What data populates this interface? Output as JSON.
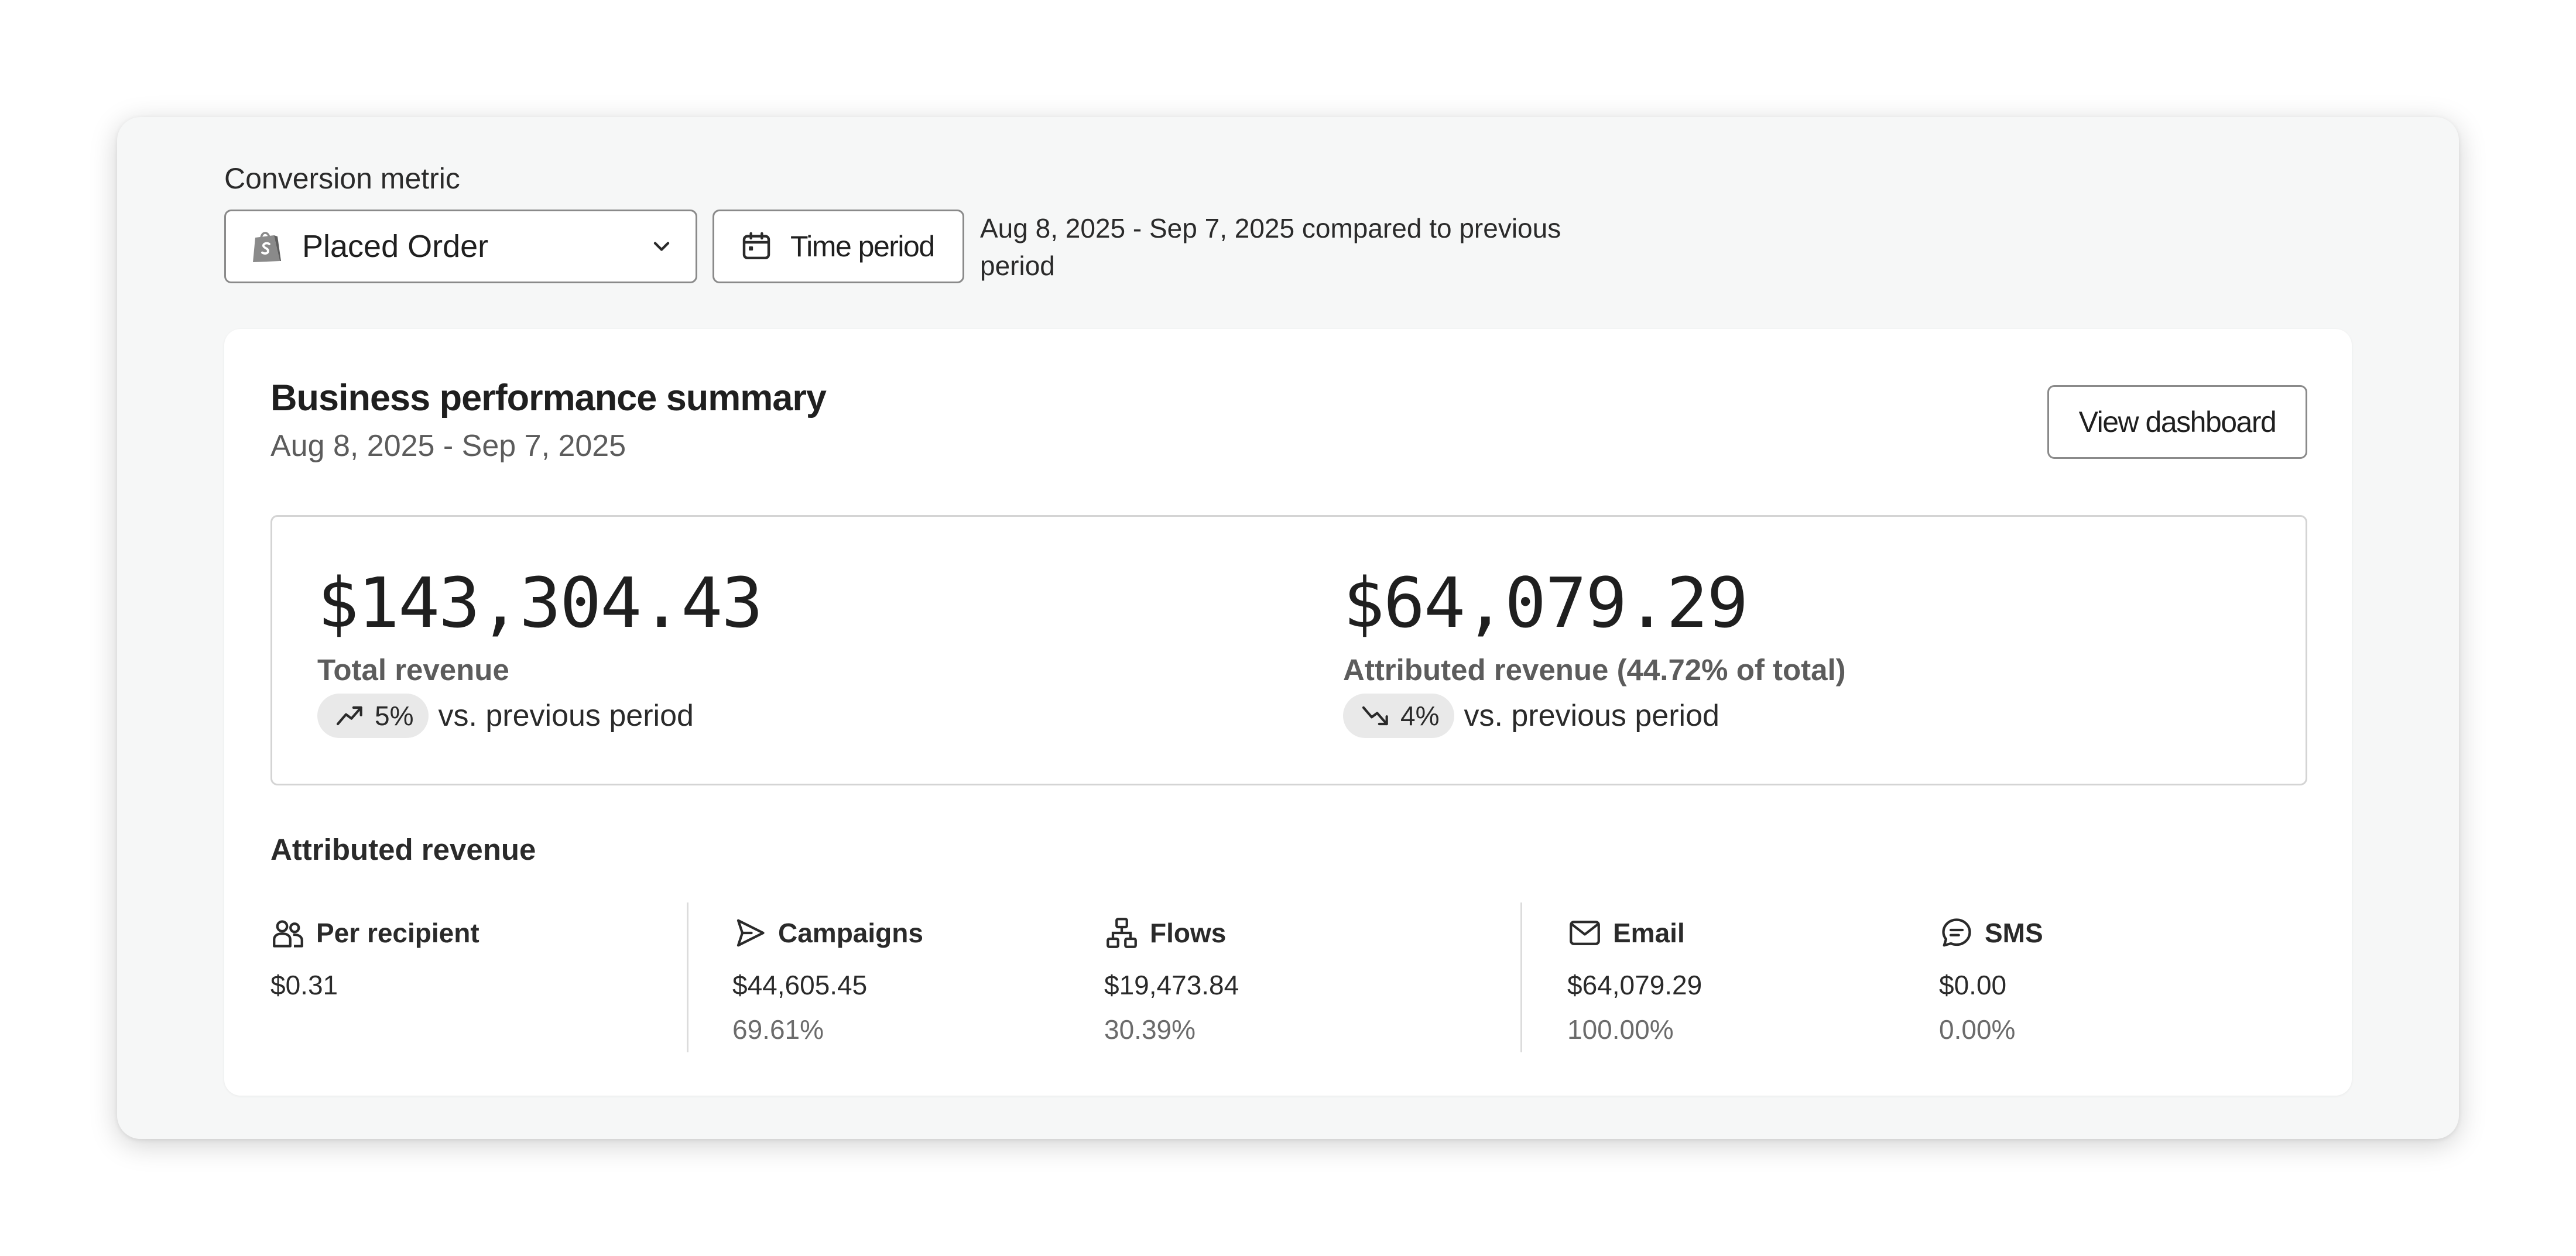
{
  "filters": {
    "metric_label": "Conversion metric",
    "metric_value": "Placed Order",
    "time_period_label": "Time period",
    "range_text": "Aug 8, 2025 - Sep 7, 2025 compared to previous period"
  },
  "summary": {
    "title": "Business performance summary",
    "date_range": "Aug 8, 2025 - Sep 7, 2025",
    "view_button": "View dashboard"
  },
  "kpis": [
    {
      "value": "$143,304.43",
      "label": "Total revenue",
      "change": "5%",
      "direction": "up",
      "comparison": "vs. previous period"
    },
    {
      "value": "$64,079.29",
      "label": "Attributed revenue (44.72% of total)",
      "change": "4%",
      "direction": "down",
      "comparison": "vs. previous period"
    }
  ],
  "attributed": {
    "title": "Attributed revenue",
    "items": [
      {
        "label": "Per recipient",
        "icon": "users-icon",
        "amount": "$0.31",
        "percent": ""
      },
      {
        "label": "Campaigns",
        "icon": "send-icon",
        "amount": "$44,605.45",
        "percent": "69.61%"
      },
      {
        "label": "Flows",
        "icon": "flow-icon",
        "amount": "$19,473.84",
        "percent": "30.39%"
      },
      {
        "label": "Email",
        "icon": "mail-icon",
        "amount": "$64,079.29",
        "percent": "100.00%"
      },
      {
        "label": "SMS",
        "icon": "chat-icon",
        "amount": "$0.00",
        "percent": "0.00%"
      }
    ]
  },
  "colors": {
    "outer_bg": "#f6f7f7",
    "card_bg": "#ffffff",
    "border": "#8a8a8a",
    "pill_bg": "#e9e9e9",
    "muted_text": "#5c5c5c"
  }
}
